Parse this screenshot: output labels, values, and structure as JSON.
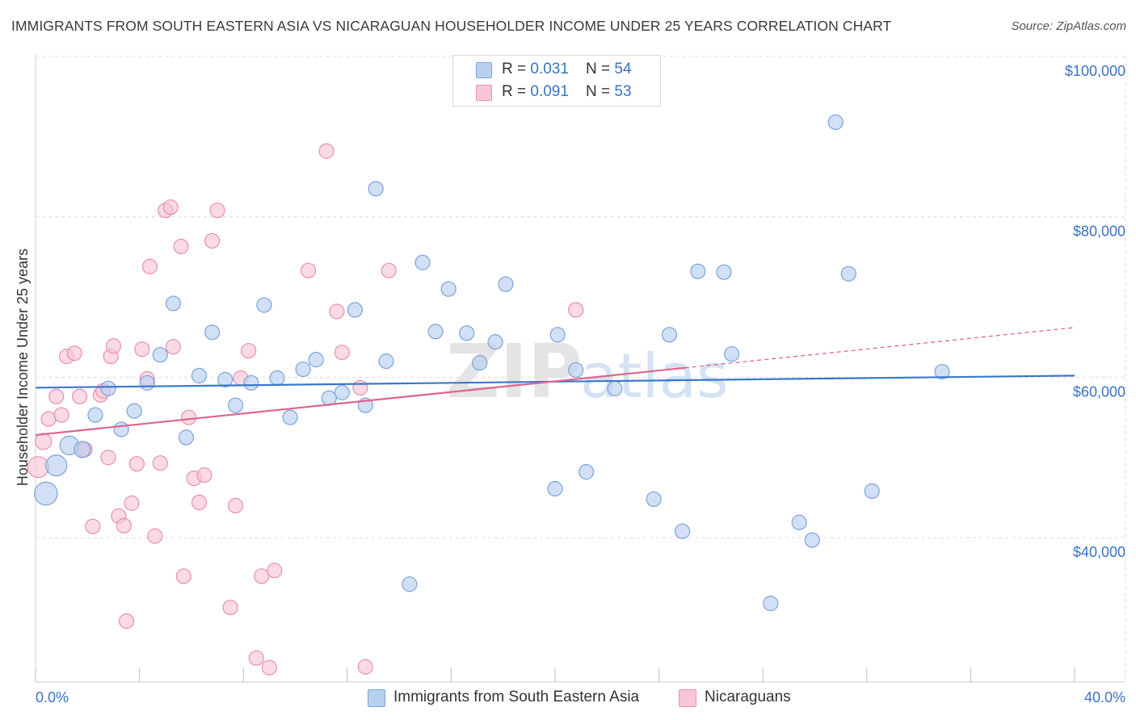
{
  "title": "IMMIGRANTS FROM SOUTH EASTERN ASIA VS NICARAGUAN HOUSEHOLDER INCOME UNDER 25 YEARS CORRELATION CHART",
  "source": "Source: ZipAtlas.com",
  "watermark": {
    "zip": "ZIP",
    "atlas": "atlas"
  },
  "legend": {
    "series1": {
      "r_label": "R = ",
      "r_value": "0.031",
      "n_label": "N = ",
      "n_value": "54"
    },
    "series2": {
      "r_label": "R = ",
      "r_value": "0.091",
      "n_label": "N = ",
      "n_value": "53"
    }
  },
  "bottom_legend": {
    "series1": "Immigrants from South Eastern Asia",
    "series2": "Nicaraguans"
  },
  "colors": {
    "blue_fill": "#b8d0f0",
    "blue_stroke": "#7aa4dc",
    "blue_line": "#3a78c9",
    "pink_fill": "#f7c6d6",
    "pink_stroke": "#e890ae",
    "pink_line": "#e0638c",
    "axis_label": "#3a73c4",
    "grid": "#dcdcdc"
  },
  "chart_data": {
    "type": "scatter",
    "title": "IMMIGRANTS FROM SOUTH EASTERN ASIA VS NICARAGUAN HOUSEHOLDER INCOME UNDER 25 YEARS CORRELATION CHART",
    "xlabel": "",
    "ylabel": "Householder Income Under 25 years",
    "xlim": [
      0,
      40
    ],
    "ylim": [
      22000,
      102000
    ],
    "x_tick_labels": [
      "0.0%",
      "40.0%"
    ],
    "y_ticks": [
      40000,
      60000,
      80000,
      100000
    ],
    "y_tick_labels": [
      "$40,000",
      "$60,000",
      "$80,000",
      "$100,000"
    ],
    "grid": true,
    "legend_position": "top-center",
    "series": [
      {
        "name": "Immigrants from South Eastern Asia",
        "r": 0.031,
        "n": 54,
        "trend": {
          "x": [
            0,
            40
          ],
          "y": [
            58700,
            60200
          ],
          "dashed_from": null
        },
        "points": [
          [
            0.4,
            45500,
            3
          ],
          [
            0.8,
            49000,
            2.5
          ],
          [
            1.3,
            51500,
            2
          ],
          [
            1.8,
            51000,
            1.5
          ],
          [
            2.3,
            55300,
            1.2
          ],
          [
            2.8,
            58600,
            1
          ],
          [
            3.3,
            53500,
            1
          ],
          [
            3.8,
            55800,
            1
          ],
          [
            4.3,
            59300,
            1
          ],
          [
            4.8,
            62800,
            1
          ],
          [
            5.3,
            69200,
            1
          ],
          [
            5.8,
            52500,
            1
          ],
          [
            6.3,
            60200,
            1
          ],
          [
            6.8,
            65600,
            1
          ],
          [
            7.3,
            59700,
            1
          ],
          [
            7.7,
            56500,
            1
          ],
          [
            8.3,
            59300,
            1
          ],
          [
            8.8,
            69000,
            1
          ],
          [
            9.3,
            59900,
            1
          ],
          [
            9.8,
            55000,
            1
          ],
          [
            10.3,
            61000,
            1
          ],
          [
            10.8,
            62200,
            1
          ],
          [
            11.3,
            57400,
            1
          ],
          [
            11.8,
            58100,
            1
          ],
          [
            12.3,
            68400,
            1
          ],
          [
            12.7,
            56500,
            1
          ],
          [
            13.1,
            83500,
            1
          ],
          [
            13.5,
            62000,
            1
          ],
          [
            14.4,
            34200,
            1
          ],
          [
            14.9,
            74300,
            1
          ],
          [
            15.4,
            65700,
            1
          ],
          [
            15.9,
            71000,
            1
          ],
          [
            16.6,
            65500,
            1
          ],
          [
            17.1,
            61800,
            1
          ],
          [
            17.7,
            64400,
            1
          ],
          [
            18.1,
            71600,
            1
          ],
          [
            20.0,
            46100,
            1
          ],
          [
            20.1,
            65300,
            1
          ],
          [
            20.8,
            60900,
            1
          ],
          [
            21.2,
            48200,
            1
          ],
          [
            22.3,
            58600,
            1
          ],
          [
            23.8,
            44800,
            1
          ],
          [
            24.4,
            65300,
            1
          ],
          [
            24.9,
            40800,
            1
          ],
          [
            25.5,
            73200,
            1
          ],
          [
            26.5,
            73100,
            1
          ],
          [
            26.8,
            62900,
            1
          ],
          [
            28.3,
            31800,
            1
          ],
          [
            29.4,
            41900,
            1
          ],
          [
            29.9,
            39700,
            1
          ],
          [
            30.8,
            91800,
            1
          ],
          [
            31.3,
            72900,
            1
          ],
          [
            32.2,
            45800,
            1
          ],
          [
            34.9,
            60700,
            1
          ]
        ]
      },
      {
        "name": "Nicaraguans",
        "r": 0.091,
        "n": 53,
        "trend": {
          "x": [
            0,
            40
          ],
          "y": [
            52800,
            66200
          ],
          "dashed_from": 25
        },
        "points": [
          [
            0.1,
            48800,
            2.5
          ],
          [
            0.3,
            52000,
            1.5
          ],
          [
            0.5,
            54800,
            1
          ],
          [
            0.8,
            57600,
            1
          ],
          [
            1.0,
            55300,
            1
          ],
          [
            1.2,
            62600,
            1
          ],
          [
            1.5,
            63000,
            1
          ],
          [
            1.7,
            57600,
            1
          ],
          [
            1.8,
            50900,
            1
          ],
          [
            1.9,
            51000,
            1
          ],
          [
            2.2,
            41400,
            1
          ],
          [
            2.5,
            57800,
            1
          ],
          [
            2.6,
            58300,
            1
          ],
          [
            2.8,
            50000,
            1
          ],
          [
            2.9,
            62600,
            1
          ],
          [
            3.0,
            63900,
            1
          ],
          [
            3.2,
            42700,
            1
          ],
          [
            3.4,
            41500,
            1
          ],
          [
            3.5,
            29600,
            1
          ],
          [
            3.7,
            44300,
            1
          ],
          [
            3.9,
            49200,
            1
          ],
          [
            4.1,
            63500,
            1
          ],
          [
            4.3,
            59800,
            1
          ],
          [
            4.4,
            73800,
            1
          ],
          [
            4.6,
            40200,
            1
          ],
          [
            4.8,
            49300,
            1
          ],
          [
            5.0,
            80800,
            1
          ],
          [
            5.2,
            81200,
            1
          ],
          [
            5.3,
            63800,
            1
          ],
          [
            5.6,
            76300,
            1
          ],
          [
            5.7,
            35200,
            1
          ],
          [
            5.9,
            55000,
            1
          ],
          [
            6.1,
            47400,
            1
          ],
          [
            6.3,
            44400,
            1
          ],
          [
            6.5,
            47800,
            1
          ],
          [
            6.8,
            77000,
            1
          ],
          [
            7.0,
            80800,
            1
          ],
          [
            7.5,
            31300,
            1
          ],
          [
            7.7,
            44000,
            1
          ],
          [
            7.9,
            59900,
            1
          ],
          [
            8.2,
            63300,
            1
          ],
          [
            8.5,
            25000,
            1
          ],
          [
            8.7,
            35200,
            1
          ],
          [
            9.0,
            23800,
            1
          ],
          [
            9.2,
            35900,
            1
          ],
          [
            10.5,
            73300,
            1
          ],
          [
            11.2,
            88200,
            1
          ],
          [
            11.6,
            68200,
            1
          ],
          [
            11.8,
            63100,
            1
          ],
          [
            12.5,
            58700,
            1
          ],
          [
            12.7,
            23900,
            1
          ],
          [
            13.6,
            73300,
            1
          ],
          [
            20.8,
            68400,
            1
          ]
        ]
      }
    ]
  }
}
